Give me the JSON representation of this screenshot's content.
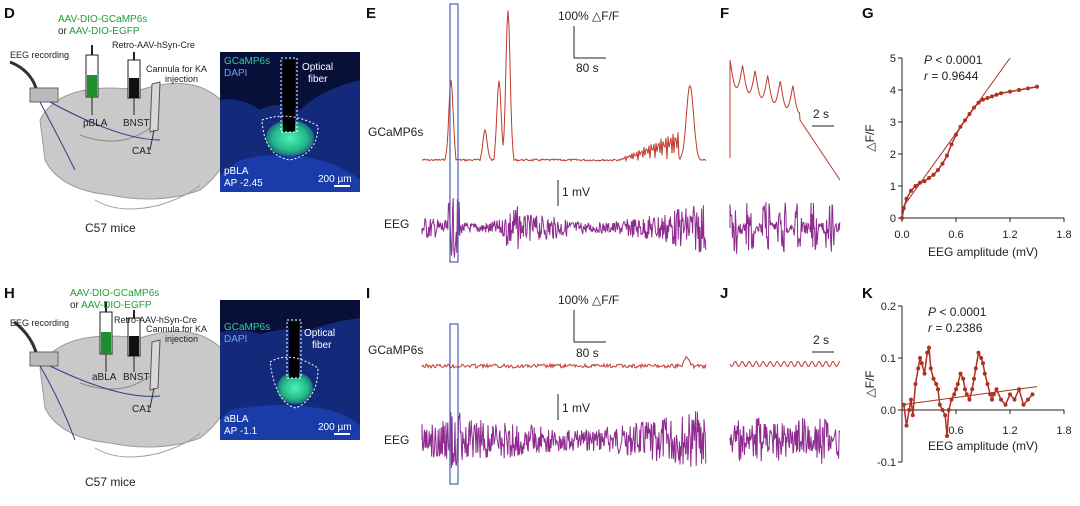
{
  "panels": {
    "D": "D",
    "E": "E",
    "F": "F",
    "G": "G",
    "H": "H",
    "I": "I",
    "J": "J",
    "K": "K"
  },
  "colors": {
    "calcium": "#c0392b",
    "eeg": "#8e2b8f",
    "window": "#4a5fb5",
    "brain": "#bdbdbd",
    "fluor_green": "#2fd19a",
    "fluor_blue": "#1f3fa8"
  },
  "schematic_D": {
    "virus_line1": "AAV-DIO-GCaMP6s",
    "virus_line2_prefix": "or ",
    "virus_line2": "AAV-DIO-EGFP",
    "retro": "Retro-AAV-hSyn-Cre",
    "eeg": "EEG recording",
    "cannula1": "Cannula for KA",
    "cannula2": "injection",
    "site1": "pBLA",
    "site2": "BNST",
    "site3": "CA1",
    "mice": "C57 mice"
  },
  "histology_D": {
    "gcamp": "GCaMP6s",
    "dapi": "DAPI",
    "fiber1": "Optical",
    "fiber2": "fiber",
    "region": "pBLA",
    "coord": "AP -2.45",
    "scale": "200 µm"
  },
  "traces_E": {
    "scale_y": "100% △F/F",
    "scale_x": "80 s",
    "eeg_scale": "1 mV",
    "label_ca": "GCaMP6s",
    "label_eeg": "EEG"
  },
  "zoom_F": {
    "scale_x": "2 s"
  },
  "schematic_H": {
    "virus_line1": "AAV-DIO-GCaMP6s",
    "virus_line2_prefix": "or ",
    "virus_line2": "AAV-DIO-EGFP",
    "retro": "Retro-AAV-hSyn-Cre",
    "eeg": "EEG recording",
    "cannula1": "Cannula for KA",
    "cannula2": "injection",
    "site1": "aBLA",
    "site2": "BNST",
    "site3": "CA1",
    "mice": "C57 mice"
  },
  "histology_H": {
    "gcamp": "GCaMP6s",
    "dapi": "DAPI",
    "fiber1": "Optical",
    "fiber2": "fiber",
    "region": "aBLA",
    "coord": "AP -1.1",
    "scale": "200 µm"
  },
  "traces_I": {
    "scale_y": "100% △F/F",
    "scale_x": "80 s",
    "eeg_scale": "1 mV",
    "label_ca": "GCaMP6s",
    "label_eeg": "EEG"
  },
  "zoom_J": {
    "scale_x": "2 s"
  },
  "chart_data": [
    {
      "id": "G",
      "type": "scatter",
      "xlabel": "EEG amplitude (mV)",
      "ylabel": "△F/F",
      "xlim": [
        0,
        1.8
      ],
      "ylim": [
        0,
        5
      ],
      "xticks": [
        "0.0",
        "0.6",
        "1.2",
        "1.8"
      ],
      "yticks": [
        "0",
        "1",
        "2",
        "3",
        "4",
        "5"
      ],
      "p_label": "P",
      "p_value": "< 0.0001",
      "r_label": "r",
      "r_value": "= 0.9644",
      "fit": {
        "x": [
          0,
          1.2
        ],
        "y": [
          0.3,
          5.0
        ]
      },
      "points": {
        "x": [
          0.0,
          0.02,
          0.05,
          0.1,
          0.15,
          0.2,
          0.25,
          0.3,
          0.35,
          0.4,
          0.45,
          0.5,
          0.55,
          0.6,
          0.65,
          0.7,
          0.75,
          0.8,
          0.85,
          0.9,
          0.95,
          1.0,
          1.05,
          1.1,
          1.2,
          1.3,
          1.4,
          1.5
        ],
        "y": [
          0.0,
          0.3,
          0.6,
          0.85,
          1.0,
          1.1,
          1.15,
          1.25,
          1.35,
          1.5,
          1.7,
          1.95,
          2.3,
          2.6,
          2.85,
          3.05,
          3.25,
          3.45,
          3.6,
          3.7,
          3.75,
          3.8,
          3.85,
          3.9,
          3.95,
          4.0,
          4.05,
          4.1
        ]
      }
    },
    {
      "id": "K",
      "type": "scatter",
      "xlabel": "EEG amplitude (mV)",
      "ylabel": "△F/F",
      "xlim": [
        0,
        1.8
      ],
      "ylim": [
        -0.1,
        0.2
      ],
      "xticks": [
        "0.6",
        "1.2",
        "1.8"
      ],
      "yticks": [
        "0.2",
        "0.1",
        "0.0",
        "-0.1"
      ],
      "p_label": "P",
      "p_value": "< 0.0001",
      "r_label": "r",
      "r_value": "= 0.2386",
      "fit": {
        "x": [
          0,
          1.5
        ],
        "y": [
          0.01,
          0.045
        ]
      },
      "points": {
        "x": [
          0.02,
          0.05,
          0.08,
          0.1,
          0.12,
          0.15,
          0.18,
          0.2,
          0.22,
          0.25,
          0.28,
          0.3,
          0.32,
          0.35,
          0.38,
          0.4,
          0.42,
          0.45,
          0.48,
          0.5,
          0.52,
          0.55,
          0.58,
          0.6,
          0.62,
          0.65,
          0.68,
          0.7,
          0.72,
          0.75,
          0.78,
          0.8,
          0.82,
          0.85,
          0.88,
          0.9,
          0.92,
          0.95,
          0.98,
          1.0,
          1.02,
          1.05,
          1.1,
          1.15,
          1.2,
          1.25,
          1.3,
          1.35,
          1.4,
          1.45
        ],
        "y": [
          0.01,
          -0.03,
          0.0,
          0.02,
          -0.01,
          0.05,
          0.08,
          0.1,
          0.09,
          0.07,
          0.11,
          0.12,
          0.08,
          0.06,
          0.05,
          0.04,
          0.01,
          0.0,
          -0.01,
          -0.05,
          0.0,
          0.02,
          0.03,
          0.04,
          0.05,
          0.07,
          0.06,
          0.04,
          0.03,
          0.02,
          0.04,
          0.06,
          0.08,
          0.11,
          0.1,
          0.09,
          0.07,
          0.05,
          0.03,
          0.02,
          0.03,
          0.04,
          0.02,
          0.01,
          0.03,
          0.02,
          0.04,
          0.01,
          0.02,
          0.03
        ]
      }
    }
  ]
}
